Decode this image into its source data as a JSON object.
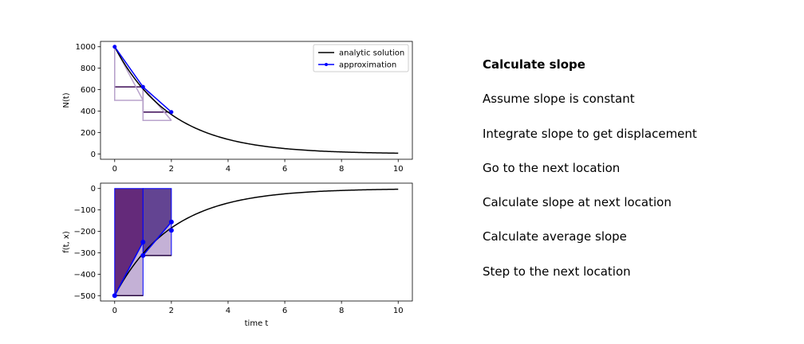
{
  "steps": [
    {
      "label": "Calculate slope",
      "active": true
    },
    {
      "label": "Assume slope is constant",
      "active": false
    },
    {
      "label": "Integrate slope to get displacement",
      "active": false
    },
    {
      "label": "Go to the next location",
      "active": false
    },
    {
      "label": "Calculate slope at next location",
      "active": false
    },
    {
      "label": "Calculate average slope",
      "active": false
    },
    {
      "label": "Step to the next location",
      "active": false
    }
  ],
  "chart_data": [
    {
      "type": "line",
      "xlabel": "",
      "ylabel": "N(t)",
      "xlim": [
        -0.5,
        10.5
      ],
      "ylim": [
        -50,
        1050
      ],
      "xticks": [
        0,
        2,
        4,
        6,
        8,
        10
      ],
      "yticks": [
        0,
        200,
        400,
        600,
        800,
        1000
      ],
      "legend": {
        "placement": "top-right",
        "entries": [
          "analytic solution",
          "approximation"
        ]
      },
      "series": [
        {
          "name": "analytic solution",
          "color": "#000000",
          "function": "1000*exp(-0.5*t)",
          "x_range": [
            0,
            10
          ]
        },
        {
          "name": "approximation",
          "color": "#0000ff",
          "x": [
            0,
            1,
            2
          ],
          "y": [
            1000,
            625,
            390.6
          ]
        }
      ],
      "step_guides": [
        {
          "color": "#3b0a55",
          "points": [
            [
              0,
              1000
            ],
            [
              0,
              625
            ],
            [
              1,
              625
            ],
            [
              1,
              390.6
            ],
            [
              2,
              390.6
            ]
          ]
        },
        {
          "color": "#b9a3cc",
          "points": [
            [
              0,
              1000
            ],
            [
              0,
              500
            ],
            [
              1,
              500
            ],
            [
              1,
              312.5
            ],
            [
              2,
              312.5
            ]
          ]
        },
        {
          "color": "#b9a3cc",
          "points": [
            [
              0,
              1000
            ],
            [
              1,
              500
            ],
            [
              1,
              625
            ],
            [
              2,
              312.5
            ]
          ]
        },
        {
          "color": "#b9a3cc",
          "points": [
            [
              1,
              625
            ],
            [
              2,
              312.5
            ]
          ]
        }
      ]
    },
    {
      "type": "area",
      "xlabel": "time t",
      "ylabel": "f(t, x)",
      "xlim": [
        -0.5,
        10.5
      ],
      "ylim": [
        -525,
        25
      ],
      "xticks": [
        0,
        2,
        4,
        6,
        8,
        10
      ],
      "yticks": [
        0,
        -100,
        -200,
        -300,
        -400,
        -500
      ],
      "series": [
        {
          "name": "analytic solution",
          "color": "#000000",
          "function": "-500*exp(-0.5*t)",
          "x_range": [
            0,
            10
          ]
        },
        {
          "name": "approximation",
          "color": "#0000ff",
          "x": [
            0,
            1,
            1,
            2,
            2
          ],
          "y": [
            -500,
            -250,
            -312.5,
            -156.25,
            -195.3
          ]
        }
      ],
      "filled_regions": [
        {
          "color": "#5c1f73",
          "opacity": 0.95,
          "points": [
            [
              0,
              0
            ],
            [
              1,
              0
            ],
            [
              1,
              -250
            ],
            [
              0,
              -500
            ]
          ]
        },
        {
          "color": "#c4b1d6",
          "opacity": 1.0,
          "points": [
            [
              0,
              -500
            ],
            [
              1,
              -250
            ],
            [
              1,
              -500
            ]
          ]
        },
        {
          "color": "#5b3a8c",
          "opacity": 0.95,
          "points": [
            [
              1,
              0
            ],
            [
              2,
              0
            ],
            [
              2,
              -156.25
            ],
            [
              1,
              -312.5
            ]
          ]
        },
        {
          "color": "#c4b1d6",
          "opacity": 1.0,
          "points": [
            [
              1,
              -312.5
            ],
            [
              2,
              -156.25
            ],
            [
              2,
              -312.5
            ]
          ]
        }
      ],
      "step_lines": [
        {
          "color": "#2a0a40",
          "points": [
            [
              0,
              -500
            ],
            [
              1,
              -500
            ]
          ]
        },
        {
          "color": "#2a0a40",
          "points": [
            [
              1,
              -312.5
            ],
            [
              2,
              -312.5
            ]
          ]
        }
      ]
    }
  ]
}
